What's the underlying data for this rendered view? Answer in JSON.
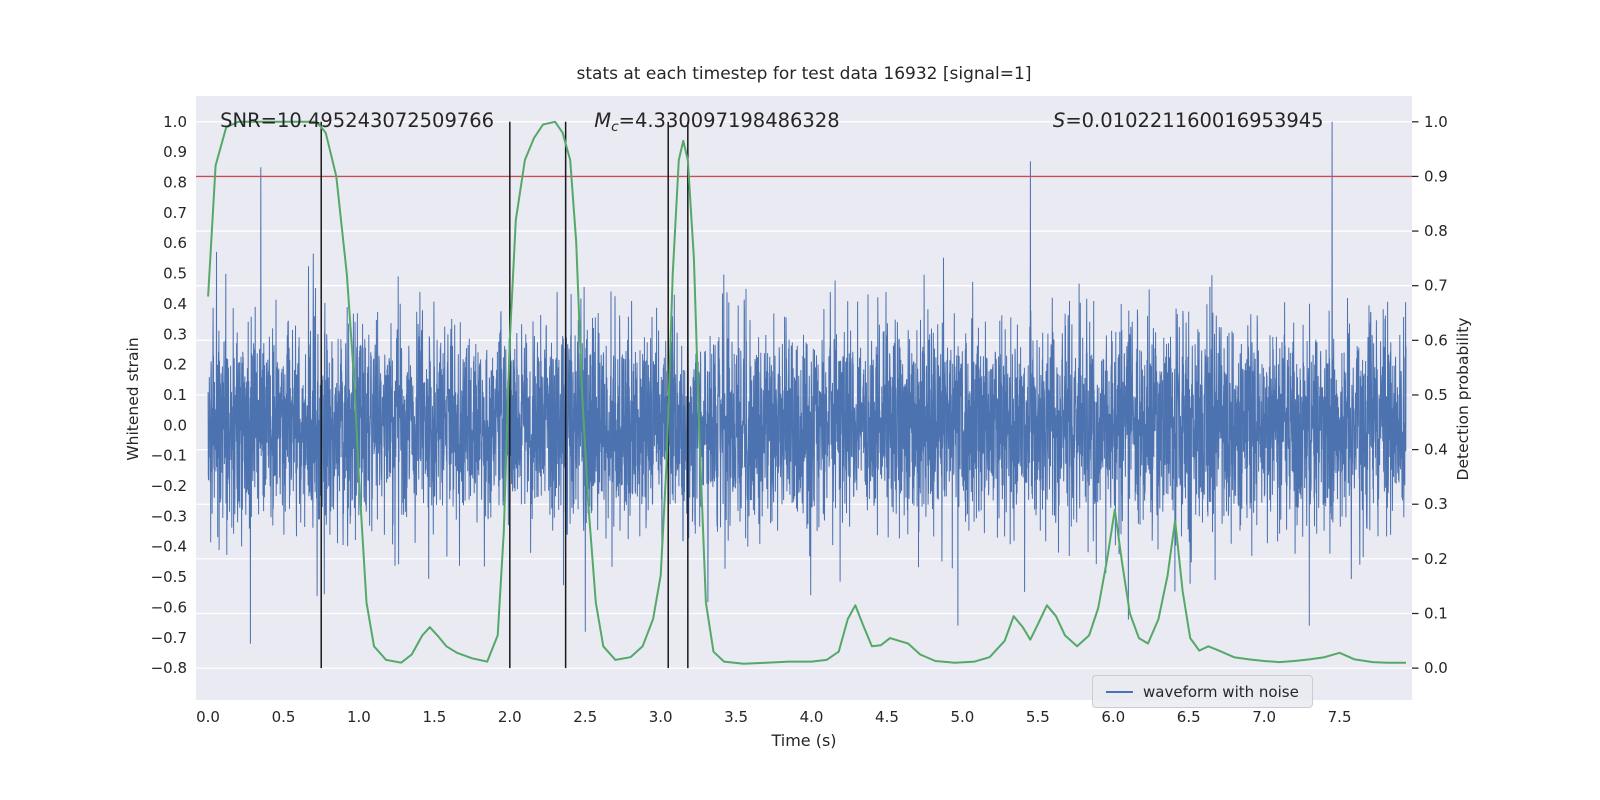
{
  "chart_data": {
    "type": "line",
    "title": "stats at each timestep for test data 16932 [signal=1]",
    "xlabel": "Time (s)",
    "ylabel_left": "Whitened strain",
    "ylabel_right": "Detection probability",
    "xlim": [
      -0.08,
      7.98
    ],
    "ylim_left": [
      -0.905,
      1.085
    ],
    "right_axis_maps_to_left": {
      "p0_at": -0.8,
      "p1_at": 1.0
    },
    "xticks": [
      0.0,
      0.5,
      1.0,
      1.5,
      2.0,
      2.5,
      3.0,
      3.5,
      4.0,
      4.5,
      5.0,
      5.5,
      6.0,
      6.5,
      7.0,
      7.5
    ],
    "yticks_left": [
      1.0,
      0.9,
      0.8,
      0.7,
      0.6,
      0.5,
      0.4,
      0.3,
      0.2,
      0.1,
      0.0,
      -0.1,
      -0.2,
      -0.3,
      -0.4,
      -0.5,
      -0.6,
      -0.7,
      -0.8
    ],
    "yticks_right": [
      1.0,
      0.9,
      0.8,
      0.7,
      0.6,
      0.5,
      0.4,
      0.3,
      0.2,
      0.1,
      0.0
    ],
    "grid": {
      "axis": "right-y",
      "color": "#ffffff"
    },
    "annotations": [
      {
        "x": 0.08,
        "y": 1.0,
        "segments": [
          {
            "text": "SNR",
            "italic": false,
            "sub": false
          },
          {
            "text": "=10.495243072509766",
            "italic": false,
            "sub": false
          }
        ]
      },
      {
        "x": 2.56,
        "y": 1.0,
        "segments": [
          {
            "text": "M",
            "italic": true,
            "sub": false
          },
          {
            "text": "c",
            "italic": true,
            "sub": true
          },
          {
            "text": "=4.330097198486328",
            "italic": false,
            "sub": false
          }
        ]
      },
      {
        "x": 5.6,
        "y": 1.0,
        "segments": [
          {
            "text": "S",
            "italic": true,
            "sub": false
          },
          {
            "text": "=0.010221160016953945",
            "italic": false,
            "sub": false
          }
        ]
      }
    ],
    "threshold_line": {
      "value_right_axis": 0.9,
      "color": "#c44e52"
    },
    "event_vlines": {
      "x": [
        0.75,
        2.0,
        2.37,
        3.05,
        3.18
      ],
      "y_span_left": [
        -0.8,
        1.0
      ],
      "color": "#1a1a1a"
    },
    "detection_probability_series": {
      "name": "detection probability",
      "color": "#55a868",
      "points": [
        [
          0.0,
          0.68
        ],
        [
          0.05,
          0.92
        ],
        [
          0.12,
          0.99
        ],
        [
          0.2,
          1.0
        ],
        [
          0.35,
          1.0
        ],
        [
          0.5,
          1.0
        ],
        [
          0.65,
          1.0
        ],
        [
          0.72,
          1.0
        ],
        [
          0.78,
          0.98
        ],
        [
          0.85,
          0.9
        ],
        [
          0.92,
          0.72
        ],
        [
          0.97,
          0.52
        ],
        [
          1.0,
          0.35
        ],
        [
          1.05,
          0.12
        ],
        [
          1.1,
          0.04
        ],
        [
          1.18,
          0.015
        ],
        [
          1.28,
          0.01
        ],
        [
          1.35,
          0.025
        ],
        [
          1.42,
          0.06
        ],
        [
          1.47,
          0.075
        ],
        [
          1.52,
          0.06
        ],
        [
          1.58,
          0.04
        ],
        [
          1.65,
          0.028
        ],
        [
          1.75,
          0.018
        ],
        [
          1.85,
          0.012
        ],
        [
          1.92,
          0.06
        ],
        [
          1.96,
          0.25
        ],
        [
          2.0,
          0.6
        ],
        [
          2.04,
          0.82
        ],
        [
          2.1,
          0.93
        ],
        [
          2.16,
          0.97
        ],
        [
          2.22,
          0.995
        ],
        [
          2.3,
          1.0
        ],
        [
          2.35,
          0.98
        ],
        [
          2.4,
          0.93
        ],
        [
          2.44,
          0.78
        ],
        [
          2.48,
          0.5
        ],
        [
          2.52,
          0.3
        ],
        [
          2.57,
          0.12
        ],
        [
          2.62,
          0.04
        ],
        [
          2.7,
          0.015
        ],
        [
          2.8,
          0.02
        ],
        [
          2.88,
          0.04
        ],
        [
          2.95,
          0.09
        ],
        [
          3.0,
          0.17
        ],
        [
          3.04,
          0.38
        ],
        [
          3.08,
          0.72
        ],
        [
          3.12,
          0.93
        ],
        [
          3.15,
          0.965
        ],
        [
          3.18,
          0.93
        ],
        [
          3.22,
          0.75
        ],
        [
          3.26,
          0.4
        ],
        [
          3.3,
          0.12
        ],
        [
          3.35,
          0.03
        ],
        [
          3.42,
          0.012
        ],
        [
          3.55,
          0.008
        ],
        [
          3.7,
          0.01
        ],
        [
          3.85,
          0.012
        ],
        [
          4.0,
          0.012
        ],
        [
          4.1,
          0.015
        ],
        [
          4.18,
          0.03
        ],
        [
          4.24,
          0.09
        ],
        [
          4.29,
          0.115
        ],
        [
          4.34,
          0.08
        ],
        [
          4.4,
          0.04
        ],
        [
          4.46,
          0.042
        ],
        [
          4.52,
          0.055
        ],
        [
          4.58,
          0.05
        ],
        [
          4.64,
          0.045
        ],
        [
          4.72,
          0.025
        ],
        [
          4.82,
          0.013
        ],
        [
          4.95,
          0.01
        ],
        [
          5.08,
          0.012
        ],
        [
          5.18,
          0.02
        ],
        [
          5.28,
          0.05
        ],
        [
          5.34,
          0.095
        ],
        [
          5.4,
          0.075
        ],
        [
          5.45,
          0.052
        ],
        [
          5.5,
          0.08
        ],
        [
          5.56,
          0.115
        ],
        [
          5.62,
          0.095
        ],
        [
          5.68,
          0.06
        ],
        [
          5.76,
          0.04
        ],
        [
          5.84,
          0.06
        ],
        [
          5.9,
          0.11
        ],
        [
          5.96,
          0.2
        ],
        [
          6.01,
          0.29
        ],
        [
          6.06,
          0.19
        ],
        [
          6.11,
          0.1
        ],
        [
          6.17,
          0.055
        ],
        [
          6.23,
          0.045
        ],
        [
          6.3,
          0.09
        ],
        [
          6.36,
          0.17
        ],
        [
          6.41,
          0.27
        ],
        [
          6.46,
          0.14
        ],
        [
          6.51,
          0.055
        ],
        [
          6.57,
          0.032
        ],
        [
          6.63,
          0.04
        ],
        [
          6.7,
          0.032
        ],
        [
          6.8,
          0.02
        ],
        [
          6.9,
          0.016
        ],
        [
          7.0,
          0.013
        ],
        [
          7.1,
          0.011
        ],
        [
          7.2,
          0.013
        ],
        [
          7.3,
          0.016
        ],
        [
          7.4,
          0.02
        ],
        [
          7.5,
          0.028
        ],
        [
          7.6,
          0.016
        ],
        [
          7.72,
          0.011
        ],
        [
          7.82,
          0.01
        ],
        [
          7.94,
          0.01
        ]
      ]
    },
    "waveform_series": {
      "name": "waveform with noise",
      "color": "#4c72b0",
      "n_samples": 6000,
      "x_range": [
        0.0,
        7.94
      ],
      "noise_sigma": 0.17,
      "seed": 42,
      "clip": 0.88,
      "notable_spikes": [
        [
          0.28,
          -0.72
        ],
        [
          0.35,
          0.85
        ],
        [
          2.37,
          0.97
        ],
        [
          2.5,
          -0.68
        ],
        [
          3.18,
          0.96
        ],
        [
          4.97,
          -0.66
        ],
        [
          5.45,
          0.87
        ],
        [
          6.1,
          -0.64
        ],
        [
          7.3,
          -0.66
        ],
        [
          7.45,
          1.0
        ]
      ]
    },
    "legend": {
      "label": "waveform with noise",
      "position": "lower right"
    },
    "colors": {
      "plot_bg": "#eaeaf2",
      "grid": "#ffffff",
      "text": "#262626",
      "tick_label": "#262626"
    }
  }
}
